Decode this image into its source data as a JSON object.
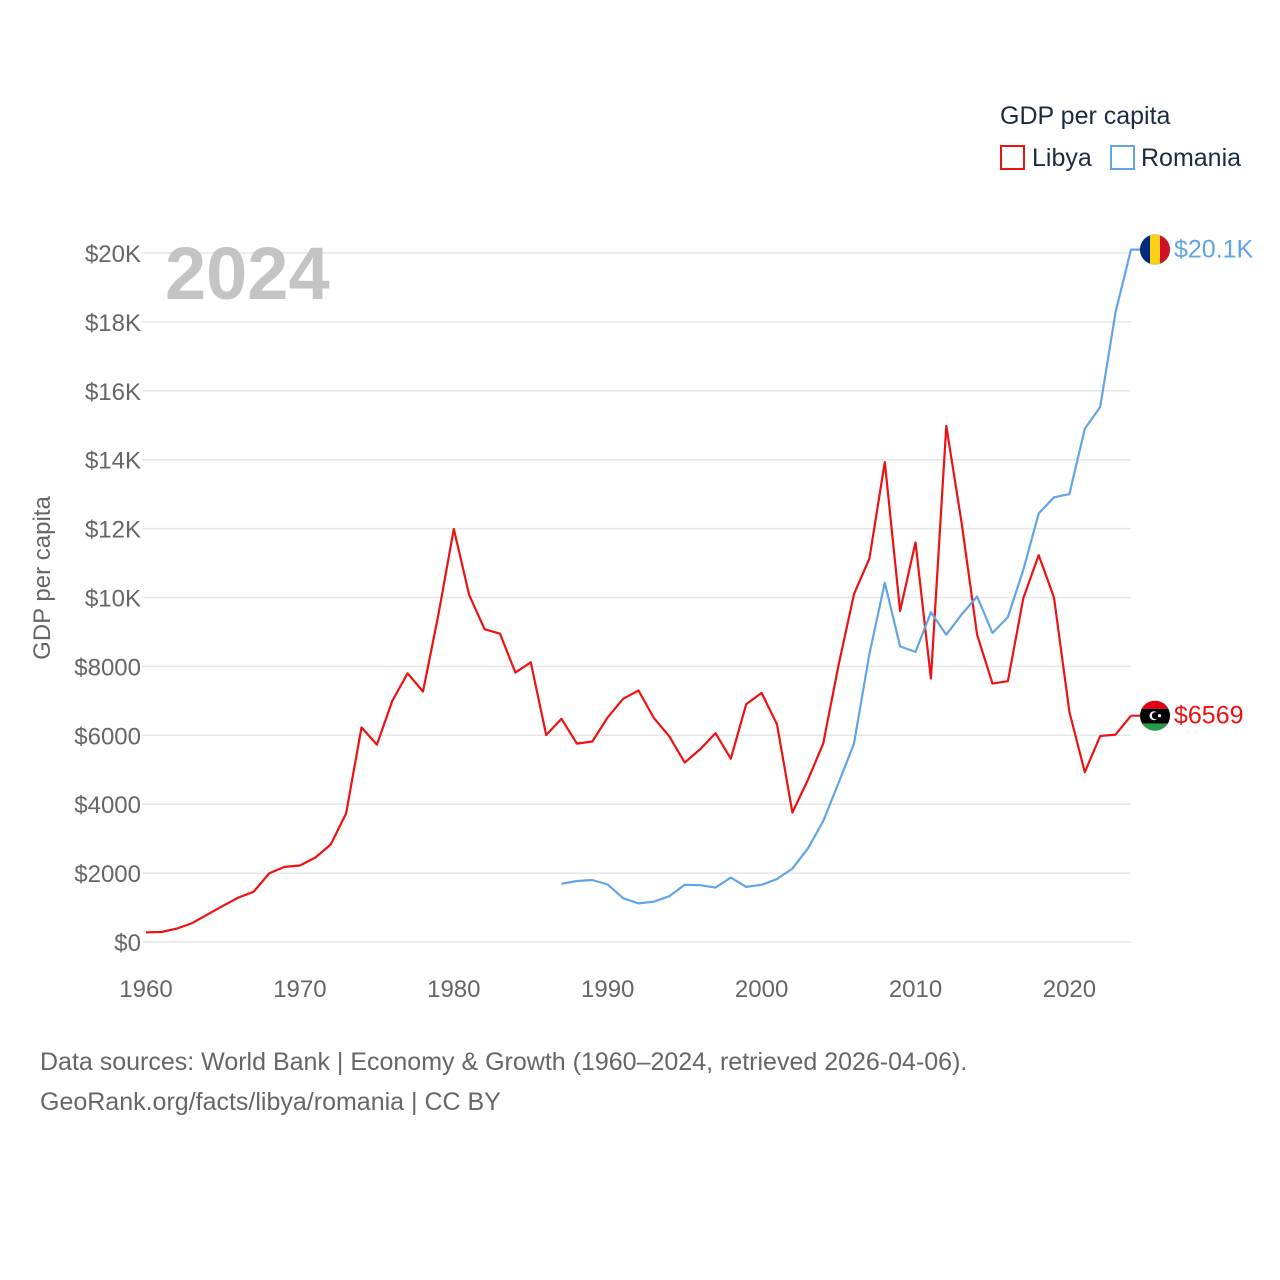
{
  "chart_data": {
    "type": "line",
    "current_year_label": "2024",
    "ylabel": "GDP per capita",
    "xlabel": "",
    "xlim": [
      1960,
      2024
    ],
    "ylim": [
      0,
      20000
    ],
    "x_ticks": [
      1960,
      1970,
      1980,
      1990,
      2000,
      2010,
      2020
    ],
    "x_tick_labels": [
      "1960",
      "1970",
      "1980",
      "1990",
      "2000",
      "2010",
      "2020"
    ],
    "y_ticks": [
      0,
      2000,
      4000,
      6000,
      8000,
      10000,
      12000,
      14000,
      16000,
      18000,
      20000
    ],
    "y_tick_labels": [
      "$0",
      "$2000",
      "$4000",
      "$6000",
      "$8000",
      "$10K",
      "$12K",
      "$14K",
      "$16K",
      "$18K",
      "$20K"
    ],
    "grid": true,
    "legend": {
      "title": "GDP per capita",
      "position": "top-right"
    },
    "series": [
      {
        "name": "Libya",
        "color": "#ee1111",
        "flag": "libya-flag-icon",
        "end_label": "$6569",
        "start_year": 1960,
        "values": [
          280,
          290,
          390,
          550,
          800,
          1050,
          1290,
          1460,
          1990,
          2180,
          2220,
          2450,
          2830,
          3730,
          6230,
          5730,
          7000,
          7800,
          7270,
          9500,
          11990,
          10070,
          9080,
          8950,
          7820,
          8120,
          6010,
          6480,
          5760,
          5820,
          6520,
          7060,
          7300,
          6500,
          5970,
          5210,
          5590,
          6060,
          5320,
          6900,
          7230,
          6320,
          3760,
          4700,
          5760,
          8040,
          10100,
          11130,
          13930,
          9610,
          11600,
          7650,
          14980,
          12150,
          8920,
          7500,
          7570,
          9980,
          11230,
          10000,
          6680,
          4930,
          5980,
          6020,
          6569
        ]
      },
      {
        "name": "Romania",
        "color": "#60a5e8",
        "flag": "romania-flag-icon",
        "end_label": "$20.1K",
        "start_year": 1987,
        "values": [
          1690,
          1770,
          1800,
          1670,
          1270,
          1120,
          1170,
          1330,
          1660,
          1650,
          1580,
          1870,
          1600,
          1660,
          1830,
          2130,
          2710,
          3510,
          4620,
          5760,
          8360,
          10430,
          8580,
          8420,
          9570,
          8920,
          9510,
          10030,
          8970,
          9430,
          10800,
          12440,
          12910,
          13000,
          14900,
          15530,
          18290,
          20100,
          20100
        ]
      }
    ]
  },
  "footer": {
    "line1": "Data sources: World Bank | Economy & Growth (1960–2024, retrieved 2026-04-06).",
    "line2": "GeoRank.org/facts/libya/romania | CC BY"
  },
  "colors": {
    "libya": "#ee1111",
    "romania": "#60a5e8",
    "grid": "#e6e6e6",
    "axis_text": "#666666",
    "legend_text": "#1c2b42",
    "year_watermark": "#c4c4c4"
  }
}
